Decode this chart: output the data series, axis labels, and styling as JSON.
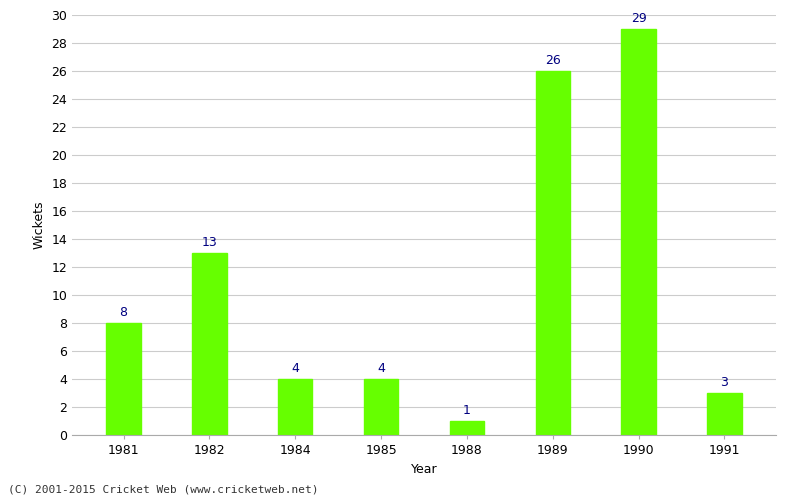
{
  "years": [
    "1981",
    "1982",
    "1984",
    "1985",
    "1988",
    "1989",
    "1990",
    "1991"
  ],
  "wickets": [
    8,
    13,
    4,
    4,
    1,
    26,
    29,
    3
  ],
  "bar_color": "#66ff00",
  "bar_edge_color": "#66ff00",
  "label_color": "#000080",
  "xlabel": "Year",
  "ylabel": "Wickets",
  "ylim": [
    0,
    30
  ],
  "yticks": [
    0,
    2,
    4,
    6,
    8,
    10,
    12,
    14,
    16,
    18,
    20,
    22,
    24,
    26,
    28,
    30
  ],
  "footnote": "(C) 2001-2015 Cricket Web (www.cricketweb.net)",
  "background_color": "#ffffff",
  "grid_color": "#cccccc",
  "label_fontsize": 9,
  "axis_fontsize": 9,
  "footnote_fontsize": 8
}
